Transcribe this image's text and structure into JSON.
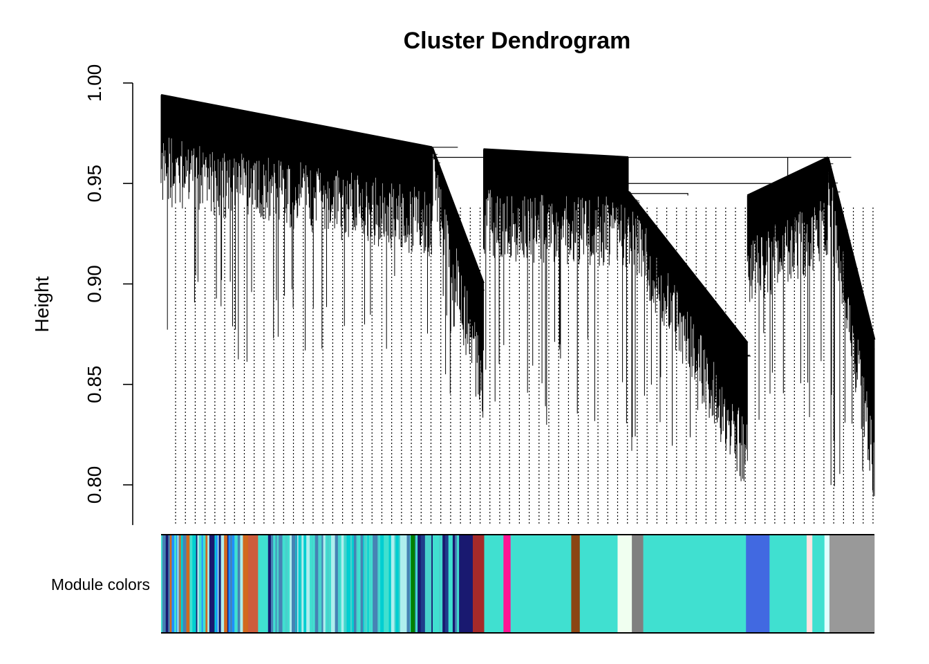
{
  "chart_data": {
    "type": "dendrogram",
    "title": "Cluster Dendrogram",
    "ylabel": "Height",
    "xlabel": "",
    "ylim": [
      0.78,
      1.0
    ],
    "yticks": [
      0.8,
      0.85,
      0.9,
      0.95,
      1.0
    ],
    "ytick_labels": [
      "0.80",
      "0.85",
      "0.90",
      "0.95",
      "1.00"
    ],
    "grid": false,
    "legend": "none",
    "color_bar_label": "Module colors",
    "leaf_guides": {
      "style": "dotted",
      "count": 72
    },
    "clusters": [
      {
        "name": "mixed-left",
        "start": 0.0,
        "end": 0.38,
        "join_height": 0.968,
        "top": 0.994,
        "bottom": 0.86,
        "descending": false
      },
      {
        "name": "mixed-tail",
        "start": 0.38,
        "end": 0.452,
        "join_height": 0.968,
        "top": 0.968,
        "bottom": 0.845,
        "descending": true
      },
      {
        "name": "turquoise-a",
        "start": 0.452,
        "end": 0.655,
        "join_height": 0.963,
        "top": 0.967,
        "bottom": 0.828,
        "descending": false
      },
      {
        "name": "turquoise-b",
        "start": 0.655,
        "end": 0.822,
        "join_height": 0.944,
        "top": 0.946,
        "bottom": 0.809,
        "descending": true
      },
      {
        "name": "blue",
        "start": 0.822,
        "end": 0.935,
        "join_height": 0.963,
        "top": 0.944,
        "bottom": 0.83,
        "descending": false
      },
      {
        "name": "grey",
        "start": 0.935,
        "end": 1.0,
        "join_height": 0.963,
        "top": 0.963,
        "bottom": 0.798,
        "descending": true
      }
    ],
    "merges": [
      {
        "left": "mixed-left",
        "right": "mixed-tail",
        "height": 0.968
      },
      {
        "left": "turquoise-a",
        "right": "turquoise-b",
        "height": 0.945
      },
      {
        "left": "turquoise-ab",
        "right": "blue",
        "height": 0.95
      },
      {
        "left": "all-left",
        "right": "grey",
        "height": 0.963
      }
    ],
    "module_colors": [
      {
        "from": 0.0,
        "to": 0.122,
        "color": "striped",
        "palette": [
          "#40E0D0",
          "#1E90FF",
          "#4682B4",
          "#708090",
          "#00CED1",
          "#191970",
          "#D2691E",
          "#AFEEEE"
        ]
      },
      {
        "from": 0.122,
        "to": 0.136,
        "color": "#CD5C3C"
      },
      {
        "from": 0.136,
        "to": 0.15,
        "color": "#40E0D0"
      },
      {
        "from": 0.15,
        "to": 0.154,
        "color": "#191970"
      },
      {
        "from": 0.154,
        "to": 0.35,
        "color": "striped",
        "palette": [
          "#40E0D0",
          "#48D1CC",
          "#00CED1",
          "#AFEEEE",
          "#4682B4"
        ]
      },
      {
        "from": 0.35,
        "to": 0.356,
        "color": "#008000"
      },
      {
        "from": 0.356,
        "to": 0.42,
        "color": "striped",
        "palette": [
          "#40E0D0",
          "#191970",
          "#4682B4",
          "#48D1CC",
          "#1E3A8A"
        ]
      },
      {
        "from": 0.42,
        "to": 0.437,
        "color": "#191970"
      },
      {
        "from": 0.437,
        "to": 0.453,
        "color": "#A52A2A"
      },
      {
        "from": 0.453,
        "to": 0.48,
        "color": "#40E0D0"
      },
      {
        "from": 0.48,
        "to": 0.49,
        "color": "#FF1493"
      },
      {
        "from": 0.49,
        "to": 0.575,
        "color": "#40E0D0"
      },
      {
        "from": 0.575,
        "to": 0.587,
        "color": "#8B4513"
      },
      {
        "from": 0.587,
        "to": 0.64,
        "color": "#40E0D0"
      },
      {
        "from": 0.64,
        "to": 0.66,
        "color": "#F0FFF0"
      },
      {
        "from": 0.66,
        "to": 0.676,
        "color": "#808080"
      },
      {
        "from": 0.676,
        "to": 0.82,
        "color": "#40E0D0"
      },
      {
        "from": 0.82,
        "to": 0.853,
        "color": "#4169E1"
      },
      {
        "from": 0.853,
        "to": 0.905,
        "color": "#40E0D0"
      },
      {
        "from": 0.905,
        "to": 0.913,
        "color": "#FFE4E1"
      },
      {
        "from": 0.913,
        "to": 0.93,
        "color": "#40E0D0"
      },
      {
        "from": 0.93,
        "to": 0.937,
        "color": "#E0FFFF"
      },
      {
        "from": 0.937,
        "to": 1.0,
        "color": "#999999"
      }
    ]
  }
}
